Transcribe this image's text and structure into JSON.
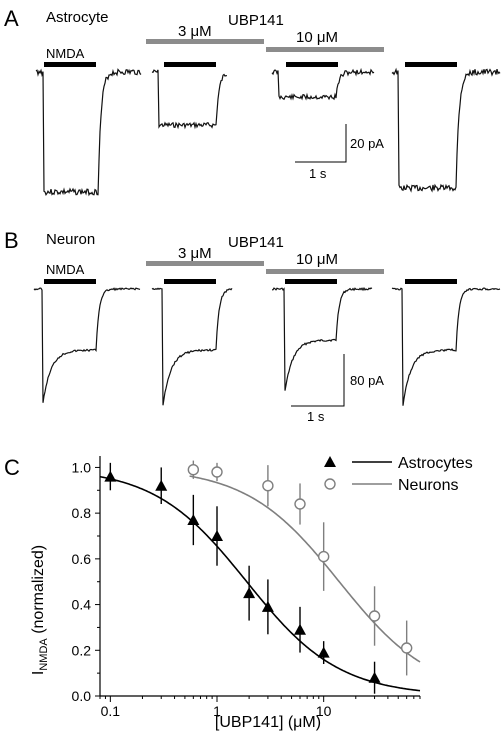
{
  "figure": {
    "panel_a": {
      "letter": "A",
      "cell": "Astrocyte",
      "drug": "UBP141",
      "agonist_label": "NMDA",
      "conc_1": "3 μM",
      "conc_2": "10 μM",
      "scale_current": "20 pA",
      "scale_time": "1 s",
      "trace_colors": {
        "trace": "#111111",
        "agonist_bar": "#000000",
        "drug_bar": "#8c8c8c"
      }
    },
    "panel_b": {
      "letter": "B",
      "cell": "Neuron",
      "drug": "UBP141",
      "agonist_label": "NMDA",
      "conc_1": "3 μM",
      "conc_2": "10 μM",
      "scale_current": "80 pA",
      "scale_time": "1 s"
    },
    "panel_c": {
      "letter": "C"
    }
  },
  "chart_data": {
    "type": "scatter",
    "xlabel": "[UBP141] (μM)",
    "ylabel_main": "I",
    "ylabel_sub": "NMDA",
    "ylabel_rest": " (normalized)",
    "x_scale": "log",
    "xlim": [
      0.08,
      80
    ],
    "ylim": [
      0,
      1.05
    ],
    "x_ticks": [
      0.1,
      1,
      10
    ],
    "x_tick_labels": [
      "0.1",
      "1",
      "10"
    ],
    "y_ticks": [
      0,
      0.2,
      0.4,
      0.6,
      0.8,
      1.0
    ],
    "y_tick_labels": [
      "0.0",
      "0.2",
      "0.4",
      "0.6",
      "0.8",
      "1.0"
    ],
    "legend_position": "top-right",
    "series": [
      {
        "name": "Astrocytes",
        "marker": "filled-triangle",
        "color": "#000000",
        "points": [
          {
            "x": 0.1,
            "y": 0.96,
            "err": 0.06
          },
          {
            "x": 0.3,
            "y": 0.92,
            "err": 0.08
          },
          {
            "x": 0.6,
            "y": 0.77,
            "err": 0.11
          },
          {
            "x": 1,
            "y": 0.7,
            "err": 0.13
          },
          {
            "x": 2,
            "y": 0.45,
            "err": 0.12
          },
          {
            "x": 3,
            "y": 0.39,
            "err": 0.12
          },
          {
            "x": 6,
            "y": 0.29,
            "err": 0.1
          },
          {
            "x": 10,
            "y": 0.19,
            "err": 0.05
          },
          {
            "x": 30,
            "y": 0.08,
            "err": 0.07
          }
        ],
        "fit": {
          "ic50": 1.9,
          "hill": 1.0
        }
      },
      {
        "name": "Neurons",
        "marker": "open-circle",
        "color": "#7f7f7f",
        "points": [
          {
            "x": 0.6,
            "y": 0.99,
            "err": 0.04
          },
          {
            "x": 1,
            "y": 0.98,
            "err": 0.04
          },
          {
            "x": 3,
            "y": 0.92,
            "err": 0.09
          },
          {
            "x": 6,
            "y": 0.84,
            "err": 0.09
          },
          {
            "x": 10,
            "y": 0.61,
            "err": 0.15
          },
          {
            "x": 30,
            "y": 0.35,
            "err": 0.13
          },
          {
            "x": 60,
            "y": 0.21,
            "err": 0.12
          }
        ],
        "fit": {
          "ic50": 14,
          "hill": 1.0
        }
      }
    ]
  }
}
